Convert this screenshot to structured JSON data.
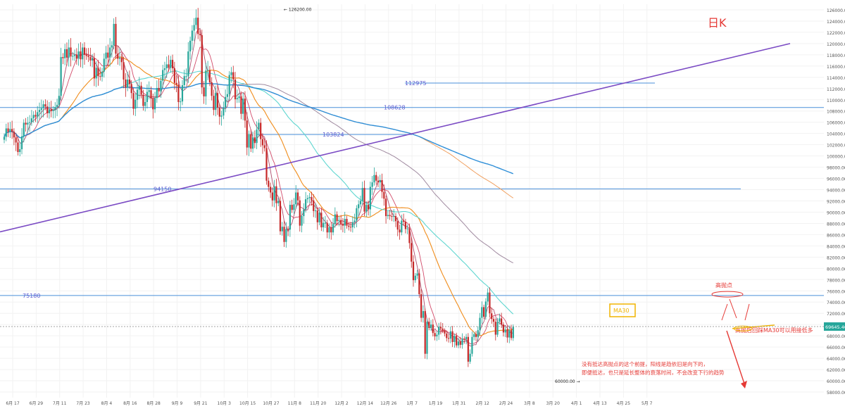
{
  "chart_data": {
    "type": "candlestick",
    "timeframe_label": "日K",
    "price_axis": {
      "min": 57000,
      "max": 127000,
      "ticks": [
        58000,
        60000,
        62000,
        64000,
        66000,
        68000,
        70000,
        72000,
        74000,
        76000,
        78000,
        80000,
        82000,
        84000,
        86000,
        88000,
        90000,
        92000,
        94000,
        96000,
        98000,
        100000,
        102000,
        104000,
        106000,
        108000,
        110000,
        112000,
        114000,
        116000,
        118000,
        120000,
        122000,
        124000,
        126000
      ],
      "tick_decimals": 2
    },
    "time_axis": {
      "labels": [
        "6月 17",
        "6月 29",
        "7月 11",
        "7月 23",
        "8月 4",
        "8月 16",
        "8月 28",
        "9月 9",
        "9月 21",
        "10月 3",
        "10月 15",
        "10月 27",
        "11月 8",
        "11月 20",
        "12月 2",
        "12月 14",
        "12月 26",
        "1月 7",
        "1月 19",
        "1月 31",
        "2月 12",
        "2月 24",
        "3月 8",
        "3月 20",
        "4月 1",
        "4月 13",
        "4月 25",
        "5月 7"
      ],
      "start_date": "6月 17",
      "day_spacing": "12 days per label"
    },
    "current_price": {
      "value": 69645.4,
      "label": "69645.40",
      "color": "#26a69a"
    },
    "high_marker": {
      "value": 126200,
      "label": "126200.00"
    },
    "low_marker": {
      "value": 60000,
      "label": "60000.00"
    },
    "horizontal_levels": [
      {
        "value": 112975,
        "label": "112975",
        "color": "#4a8fd9"
      },
      {
        "value": 108628,
        "label": "108628",
        "color": "#4a8fd9"
      },
      {
        "value": 103824,
        "label": "103824",
        "color": "#4a8fd9"
      },
      {
        "value": 94150,
        "label": "94150",
        "color": "#4a8fd9"
      },
      {
        "value": 75180,
        "label": "75180",
        "color": "#4a8fd9"
      }
    ],
    "trendline": {
      "color": "#7b4bc4",
      "from": {
        "date": "5月 27",
        "price": 86500
      },
      "to": {
        "date": "5月 4",
        "price": 120000
      }
    },
    "annotations": [
      {
        "text": "高抛点",
        "color": "#e53935"
      },
      {
        "text": "MA30",
        "color": "#f0b400"
      },
      {
        "text": "高抛后回踩MA30可以用接低多",
        "color": "#e53935"
      },
      {
        "text": "没有抵达高抛点的这个前提，阳线是趋依旧是向下的，",
        "color": "#e53935"
      },
      {
        "text": "即便抵达，也只是延长整体的衰落时间，不会改变下行的趋势",
        "color": "#e53935"
      }
    ],
    "colors": {
      "up": "#26a69a",
      "down": "#c62828",
      "background": "#ffffff",
      "grid": "#f2f2f2"
    },
    "candles_close": [
      103400,
      104900,
      104300,
      104800,
      104300,
      103300,
      102400,
      100700,
      101200,
      103500,
      105900,
      105600,
      105900,
      106000,
      106700,
      107300,
      107000,
      107800,
      108200,
      108500,
      109200,
      108800,
      107600,
      108300,
      108000,
      108200,
      108700,
      109100,
      110700,
      117600,
      117400,
      119000,
      117500,
      119300,
      117700,
      117800,
      118000,
      117300,
      118600,
      117200,
      119300,
      118000,
      117800,
      117600,
      117000,
      117400,
      113800,
      115700,
      114200,
      114100,
      115000,
      117300,
      118400,
      117500,
      119300,
      119700,
      123500,
      118200,
      117300,
      117500,
      116700,
      113600,
      112200,
      113600,
      112800,
      111200,
      108400,
      110000,
      111800,
      112500,
      110900,
      108900,
      109600,
      111400,
      111700,
      110200,
      108300,
      110300,
      112100,
      111500,
      113400,
      115300,
      115600,
      116300,
      115700,
      117100,
      115600,
      113000,
      112700,
      109600,
      109700,
      112600,
      114200,
      114200,
      118600,
      120500,
      122300,
      123300,
      124600,
      121700,
      121500,
      112200,
      110600,
      115200,
      115300,
      113100,
      110700,
      108200,
      111200,
      108600,
      107000,
      107200,
      108600,
      110500,
      111000,
      114400,
      114900,
      113600,
      110100,
      110300,
      110600,
      107500,
      110200,
      106300,
      101500,
      103900,
      101300,
      103300,
      102300,
      104700,
      105900,
      103000,
      101900,
      101400,
      95600,
      94500,
      93500,
      92100,
      94600,
      91600,
      92000,
      86600,
      87400,
      84700,
      87000,
      86900,
      91300,
      90400,
      91400,
      93500,
      92100,
      87600,
      89300,
      90500,
      92300,
      92500,
      92700,
      92100,
      90200,
      90300,
      88200,
      89900,
      87300,
      88100,
      88100,
      86400,
      87300,
      86400,
      87900,
      89600,
      88400,
      88600,
      87900,
      87600,
      88800,
      87600,
      87400,
      87300,
      88200,
      88500,
      90700,
      91400,
      92000,
      94300,
      90100,
      91300,
      90500,
      94500,
      95300,
      96600,
      95600,
      95300,
      95700,
      93600,
      92400,
      89300,
      89500,
      89300,
      89200,
      89300,
      88400,
      86900,
      86400,
      88500,
      88300,
      87000,
      87100,
      84500,
      81200,
      77900,
      78700,
      79100,
      75400,
      71200,
      72400,
      64800,
      70500,
      69400,
      70000,
      68500,
      67900,
      68200,
      69600,
      69300,
      68900,
      68400,
      67600,
      67500,
      68800,
      66900,
      68000,
      66300,
      67000,
      66400,
      67500,
      67400,
      67800,
      63400,
      64800,
      67800,
      68300,
      67800,
      69000,
      71200,
      73100,
      71400,
      74100,
      75700,
      72000,
      71000,
      70500,
      68200,
      70500,
      71100,
      70000,
      68600,
      69100,
      67700,
      69000,
      67600,
      69600
    ],
    "candles_note": "Daily candles starting 6月 17; close values in USD"
  }
}
